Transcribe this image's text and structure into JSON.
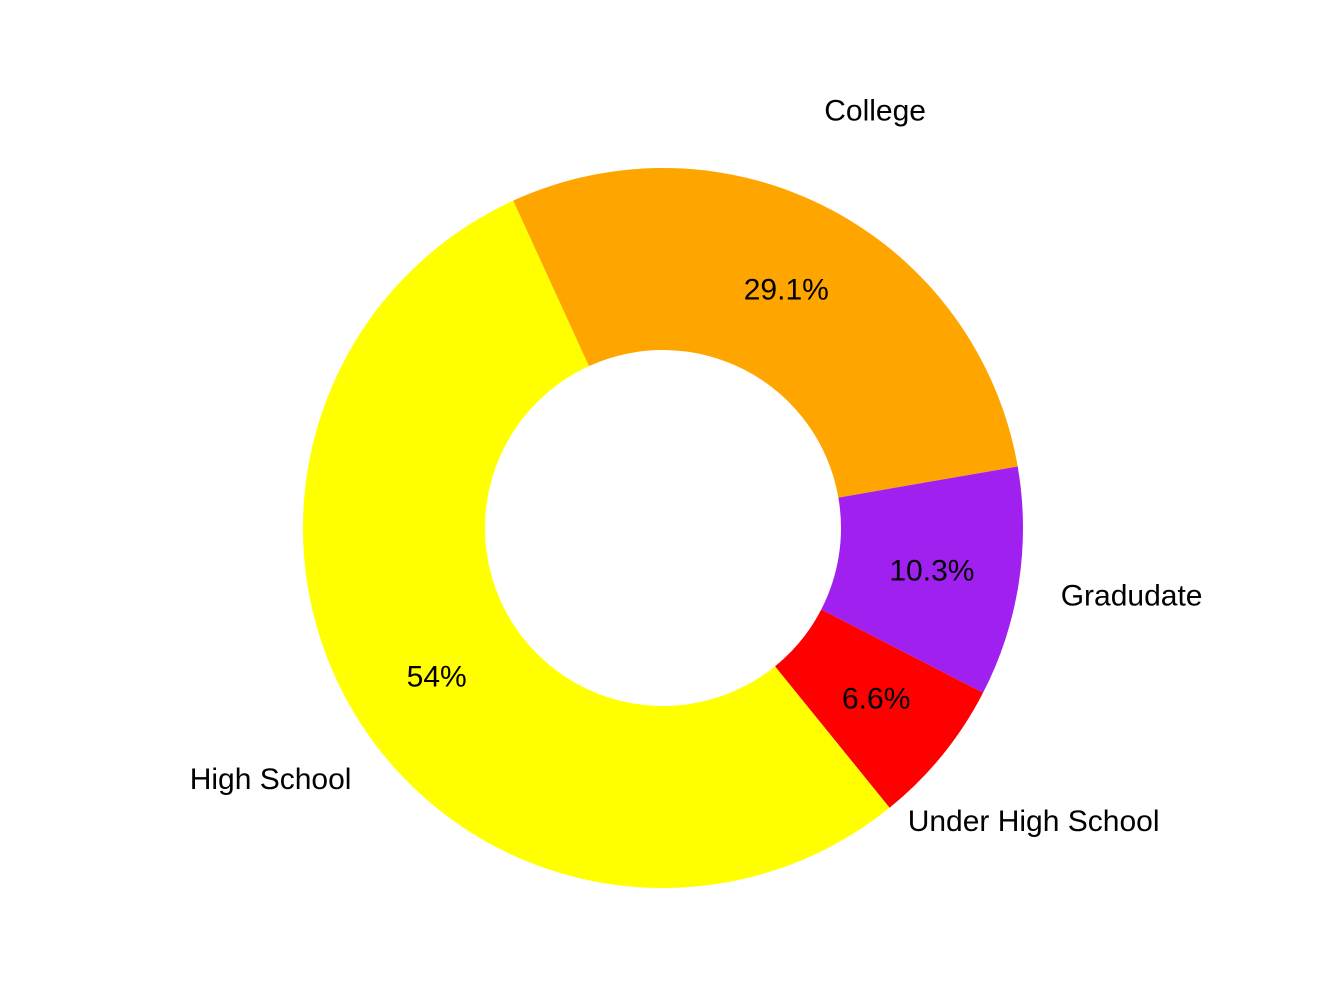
{
  "chart_data": {
    "type": "pie",
    "subtype": "donut",
    "title": "",
    "legend": "none",
    "background_color": "#FFFFFF",
    "text_color": "#000000",
    "slices": [
      {
        "label": "College",
        "value": 29.1,
        "percent_label": "29.1%",
        "color": "#FFA500"
      },
      {
        "label": "Gradudate",
        "value": 10.3,
        "percent_label": "10.3%",
        "color": "#A020F0"
      },
      {
        "label": "Under High School",
        "value": 6.6,
        "percent_label": "6.6%",
        "color": "#FF0000"
      },
      {
        "label": "High School",
        "value": 54,
        "percent_label": "54%",
        "color": "#FFFF00"
      }
    ],
    "layout": {
      "start_angle_deg": 114.6,
      "direction": "clockwise",
      "donut_hole_ratio": 0.494,
      "percent_labels_inside": true,
      "category_labels_outside": true
    }
  }
}
